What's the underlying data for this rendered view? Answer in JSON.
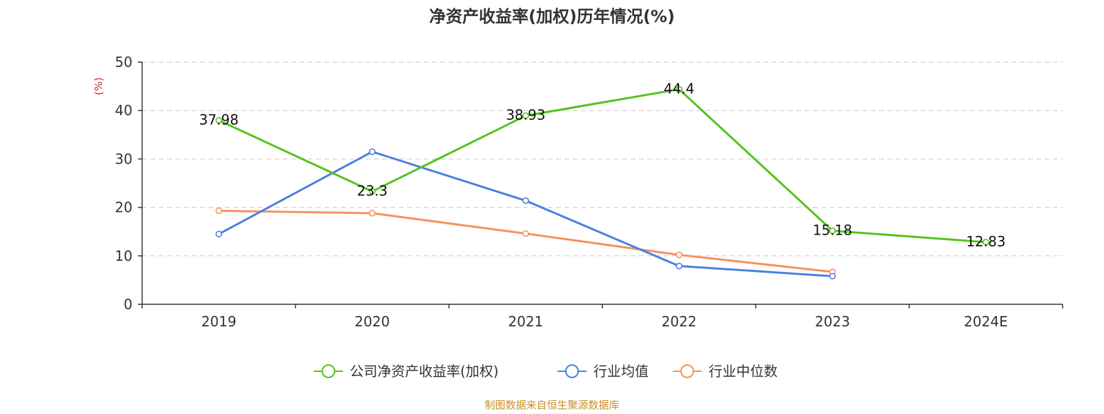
{
  "chart_data": {
    "type": "line",
    "title": "净资产收益率(加权)历年情况(%)",
    "ylabel": "(%)",
    "xlabel": "",
    "categories": [
      "2019",
      "2020",
      "2021",
      "2022",
      "2023",
      "2024E"
    ],
    "ylim": [
      0,
      50
    ],
    "yticks": [
      0,
      10,
      20,
      30,
      40,
      50
    ],
    "grid": true,
    "legend_position": "bottom-center",
    "series": [
      {
        "name": "公司净资产收益率(加权)",
        "color": "#52c41a",
        "values": [
          37.98,
          23.3,
          38.93,
          44.4,
          15.18,
          12.83
        ],
        "labels": [
          "37.98",
          "23.3",
          "38.93",
          "44.4",
          "15.18",
          "12.83"
        ]
      },
      {
        "name": "行业均值",
        "color": "#4a7fe0",
        "values": [
          14.5,
          31.5,
          21.4,
          7.9,
          5.8,
          null
        ]
      },
      {
        "name": "行业中位数",
        "color": "#f8915a",
        "values": [
          19.3,
          18.8,
          14.6,
          10.2,
          6.7,
          null
        ]
      }
    ],
    "source": "制图数据来自恒生聚源数据库"
  }
}
